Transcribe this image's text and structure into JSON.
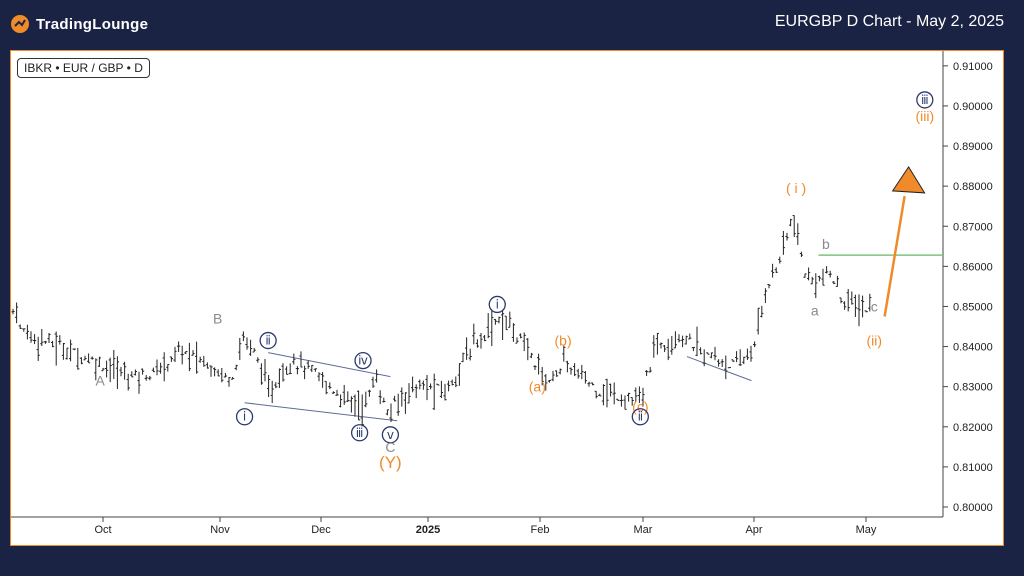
{
  "header": {
    "logo_text": "TradingLounge",
    "title": "EURGBP D Chart - May 2, 2025"
  },
  "symbol_badge": "IBKR • EUR / GBP • D",
  "colors": {
    "background": "#1b2345",
    "accent_orange": "#f08a2a",
    "navy": "#2a3a6e",
    "gray": "#8a8a8a",
    "green_line": "#7ec27e"
  },
  "chart_data": {
    "type": "line",
    "y_ticks": [
      "0.91000",
      "0.90000",
      "0.89000",
      "0.88000",
      "0.87000",
      "0.86000",
      "0.85000",
      "0.84000",
      "0.83000",
      "0.82000",
      "0.81000",
      "0.80000"
    ],
    "x_ticks": [
      "Oct",
      "Nov",
      "Dec",
      "2025",
      "Feb",
      "Mar",
      "Apr",
      "May"
    ],
    "ylim": [
      0.7975,
      0.9137
    ],
    "price_path": [
      [
        "Sep 23",
        0.845
      ],
      [
        "Sep 30",
        0.844
      ],
      [
        "Oct 7",
        0.833
      ],
      [
        "Oct 14",
        0.833
      ],
      [
        "Oct 21",
        0.839
      ],
      [
        "Oct 28",
        0.836
      ],
      [
        "Nov 4",
        0.832
      ],
      [
        "Nov 8",
        0.843
      ],
      [
        "Nov 13",
        0.835
      ],
      [
        "Nov 15",
        0.828
      ],
      [
        "Nov 22",
        0.837
      ],
      [
        "Nov 29",
        0.833
      ],
      [
        "Dec 6",
        0.828
      ],
      [
        "Dec 13",
        0.825
      ],
      [
        "Dec 17",
        0.832
      ],
      [
        "Dec 20",
        0.823
      ],
      [
        "Dec 27",
        0.83
      ],
      [
        "Jan 6",
        0.829
      ],
      [
        "Jan 13",
        0.84
      ],
      [
        "Jan 20",
        0.847
      ],
      [
        "Jan 24",
        0.845
      ],
      [
        "Feb 3",
        0.831
      ],
      [
        "Feb 7",
        0.836
      ],
      [
        "Feb 17",
        0.829
      ],
      [
        "Feb 28",
        0.826
      ],
      [
        "Mar 4",
        0.84
      ],
      [
        "Mar 11",
        0.843
      ],
      [
        "Mar 18",
        0.838
      ],
      [
        "Mar 27",
        0.835
      ],
      [
        "Apr 1",
        0.84
      ],
      [
        "Apr 4",
        0.855
      ],
      [
        "Apr 7",
        0.86
      ],
      [
        "Apr 11",
        0.872
      ],
      [
        "Apr 15",
        0.856
      ],
      [
        "Apr 21",
        0.858
      ],
      [
        "Apr 25",
        0.851
      ],
      [
        "May 2",
        0.849
      ]
    ],
    "annotations": [
      {
        "text": "A",
        "style": "gray",
        "date": "Oct 0",
        "price": 0.8315
      },
      {
        "text": "B",
        "style": "gray",
        "date": "Nov 0",
        "price": 0.847
      },
      {
        "text": "ⅰ",
        "style": "navy-circle",
        "date": "Nov 8",
        "price": 0.8225
      },
      {
        "text": "ⅱ",
        "style": "navy-circle",
        "date": "Nov 15",
        "price": 0.8415
      },
      {
        "text": "ⅲ",
        "style": "navy-circle",
        "date": "Dec 12",
        "price": 0.8185
      },
      {
        "text": "ⅳ",
        "style": "navy-circle",
        "date": "Dec 13",
        "price": 0.8365
      },
      {
        "text": "ⅴ",
        "style": "navy-circle",
        "date": "Dec 21",
        "price": 0.818
      },
      {
        "text": "C",
        "style": "gray",
        "date": "Dec 21",
        "price": 0.815
      },
      {
        "text": "(Y)",
        "style": "orange-large",
        "date": "Dec 21",
        "price": 0.811
      },
      {
        "text": "ⅰ",
        "style": "navy-circle",
        "date": "Jan 20",
        "price": 0.8505
      },
      {
        "text": "(a)",
        "style": "orange",
        "date": "Feb 0",
        "price": 0.83
      },
      {
        "text": "(b)",
        "style": "orange",
        "date": "Feb 7",
        "price": 0.8415
      },
      {
        "text": "(c)",
        "style": "orange",
        "date": "Feb 28",
        "price": 0.825
      },
      {
        "text": "ⅱ",
        "style": "navy-circle",
        "date": "Feb 28",
        "price": 0.8225
      },
      {
        "text": "( i )",
        "style": "orange",
        "date": "Apr 12",
        "price": 0.8795
      },
      {
        "text": "b",
        "style": "gray",
        "date": "Apr 20",
        "price": 0.8656
      },
      {
        "text": "a",
        "style": "gray",
        "date": "Apr 17",
        "price": 0.849
      },
      {
        "text": "c",
        "style": "gray",
        "date": "May 3",
        "price": 0.85
      },
      {
        "text": "(ii)",
        "style": "orange",
        "date": "May 3",
        "price": 0.8415
      },
      {
        "text": "ⅲ",
        "style": "navy-circle",
        "date": "May 17",
        "price": 0.9015
      },
      {
        "text": "(iii)",
        "style": "orange",
        "date": "May 17",
        "price": 0.8975
      }
    ]
  }
}
